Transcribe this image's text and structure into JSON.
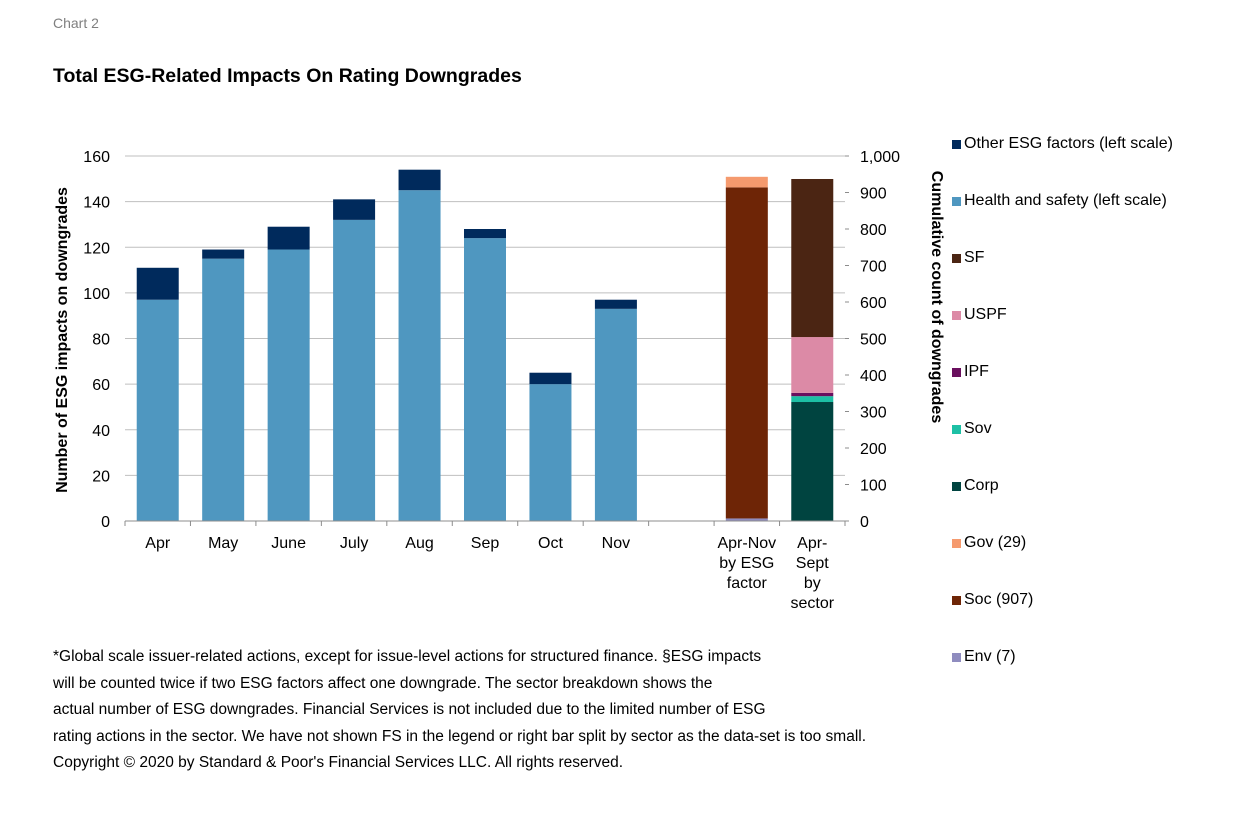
{
  "header": {
    "chart_label": "Chart 2",
    "title": "Total ESG-Related Impacts On Rating Downgrades"
  },
  "chart_data": {
    "type": "bar",
    "stacked": true,
    "title": "Total ESG-Related Impacts On Rating Downgrades",
    "left_axis": {
      "label": "Number of ESG impacts on downgrades",
      "range": [
        0,
        160
      ],
      "ticks": [
        "0",
        "20",
        "40",
        "60",
        "80",
        "100",
        "120",
        "140",
        "160"
      ],
      "tick_values": [
        0,
        20,
        40,
        60,
        80,
        100,
        120,
        140,
        160
      ]
    },
    "right_axis": {
      "label": "Cumulative count of downgrades",
      "range": [
        0,
        1000
      ],
      "ticks": [
        "0",
        "100",
        "200",
        "300",
        "400",
        "500",
        "600",
        "700",
        "800",
        "900",
        "1,000"
      ],
      "tick_values": [
        0,
        100,
        200,
        300,
        400,
        500,
        600,
        700,
        800,
        900,
        1000
      ]
    },
    "grid": true,
    "categories": [
      "Apr",
      "May",
      "June",
      "July",
      "Aug",
      "Sep",
      "Oct",
      "Nov",
      "",
      "Apr-Nov\nby ESG\nfactor",
      "Apr-\nSept\nby\nsector"
    ],
    "monthly_series": [
      {
        "name": "Health and safety (left scale)",
        "color": "#4f97c0",
        "axis": "left",
        "values": [
          97,
          115,
          119,
          132,
          145,
          124,
          60,
          93
        ]
      },
      {
        "name": "Other ESG factors (left scale)",
        "color": "#002a5c",
        "axis": "left",
        "values": [
          14,
          4,
          10,
          9,
          9,
          4,
          5,
          4
        ]
      }
    ],
    "esg_factor_bar": {
      "category_index": 9,
      "axis": "right",
      "segments": [
        {
          "name": "Env (7)",
          "value": 7,
          "color": "#8f8cbf"
        },
        {
          "name": "Soc (907)",
          "value": 907,
          "color": "#6e2506"
        },
        {
          "name": "Gov (29)",
          "value": 29,
          "color": "#f59a6e"
        }
      ]
    },
    "sector_bar": {
      "category_index": 10,
      "axis": "right",
      "segments": [
        {
          "name": "Corp",
          "value": 326,
          "color": "#004440"
        },
        {
          "name": "Sov",
          "value": 16,
          "color": "#1dc0a5"
        },
        {
          "name": "IPF",
          "value": 9,
          "color": "#6a0f5e"
        },
        {
          "name": "USPF",
          "value": 153,
          "color": "#dc8aa6"
        },
        {
          "name": "SF",
          "value": 433,
          "color": "#4b2513"
        }
      ]
    },
    "legend_position": "right",
    "legend": [
      {
        "label": "Other ESG factors (left scale)",
        "color": "#002a5c"
      },
      {
        "label": "Health and safety (left scale)",
        "color": "#4f97c0"
      },
      {
        "label": "SF",
        "color": "#4b2513"
      },
      {
        "label": "USPF",
        "color": "#dc8aa6"
      },
      {
        "label": "IPF",
        "color": "#6a0f5e"
      },
      {
        "label": "Sov",
        "color": "#1dc0a5"
      },
      {
        "label": "Corp",
        "color": "#004440"
      },
      {
        "label": "Gov (29)",
        "color": "#f59a6e"
      },
      {
        "label": "Soc (907)",
        "color": "#6e2506"
      },
      {
        "label": "Env (7)",
        "color": "#8f8cbf"
      }
    ]
  },
  "footnote": {
    "lines": [
      "*Global scale issuer-related actions, except for issue-level actions for structured finance. §ESG impacts",
      "will be counted twice if two ESG factors affect one downgrade. The sector breakdown shows the",
      "actual number of ESG downgrades. Financial Services is not included due to the limited number of ESG",
      "rating actions in the sector. We have not shown FS in the legend or right bar split by sector as the data-set is too small.",
      "Copyright © 2020 by Standard & Poor's Financial Services LLC. All rights reserved."
    ]
  }
}
